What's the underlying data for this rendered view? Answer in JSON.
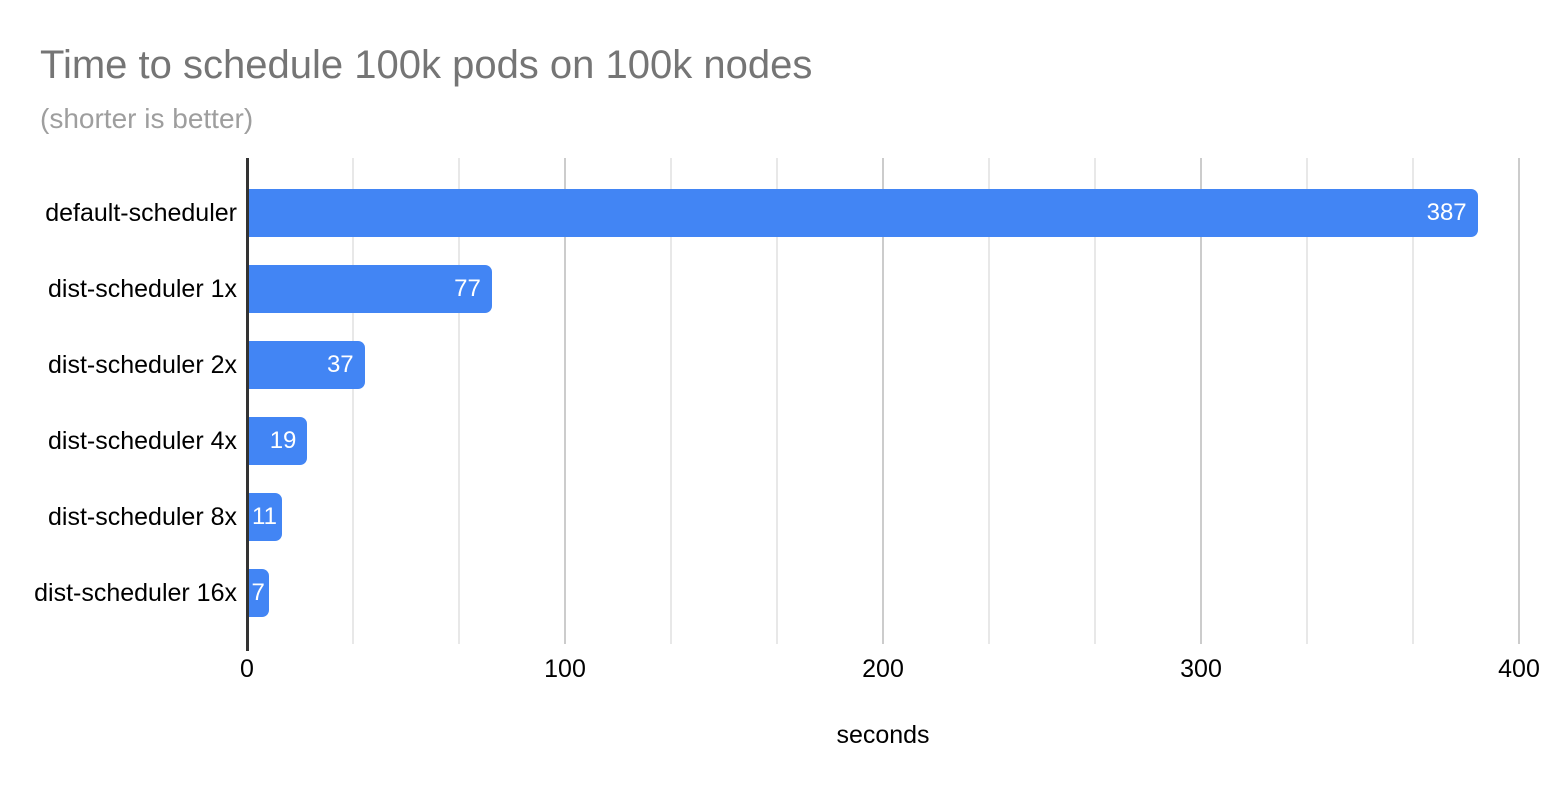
{
  "chart_data": {
    "type": "bar",
    "orientation": "horizontal",
    "title": "Time to schedule 100k pods on 100k nodes",
    "subtitle": "(shorter is better)",
    "categories": [
      "default-scheduler",
      "dist-scheduler 1x",
      "dist-scheduler 2x",
      "dist-scheduler 4x",
      "dist-scheduler 8x",
      "dist-scheduler 16x"
    ],
    "values": [
      387,
      77,
      37,
      19,
      11,
      7
    ],
    "xlabel": "seconds",
    "ylabel": "",
    "xlim": [
      0,
      400
    ],
    "x_ticks": [
      0,
      100,
      200,
      300,
      400
    ],
    "minor_gridlines_per_major": 2,
    "grid": true,
    "legend": "none",
    "value_labels": "inside-end",
    "colors": {
      "bar_color": "#4285f4",
      "axis_line": "#333333",
      "grid_minor": "#e8e8e8",
      "grid_major": "#cccccc",
      "title_color": "#757575",
      "subtitle_color": "#9e9e9e",
      "value_label_color": "#ffffff",
      "category_label_color": "#000000",
      "tick_label_color": "#000000",
      "axis_title_color": "#000000",
      "background": "#ffffff"
    }
  }
}
